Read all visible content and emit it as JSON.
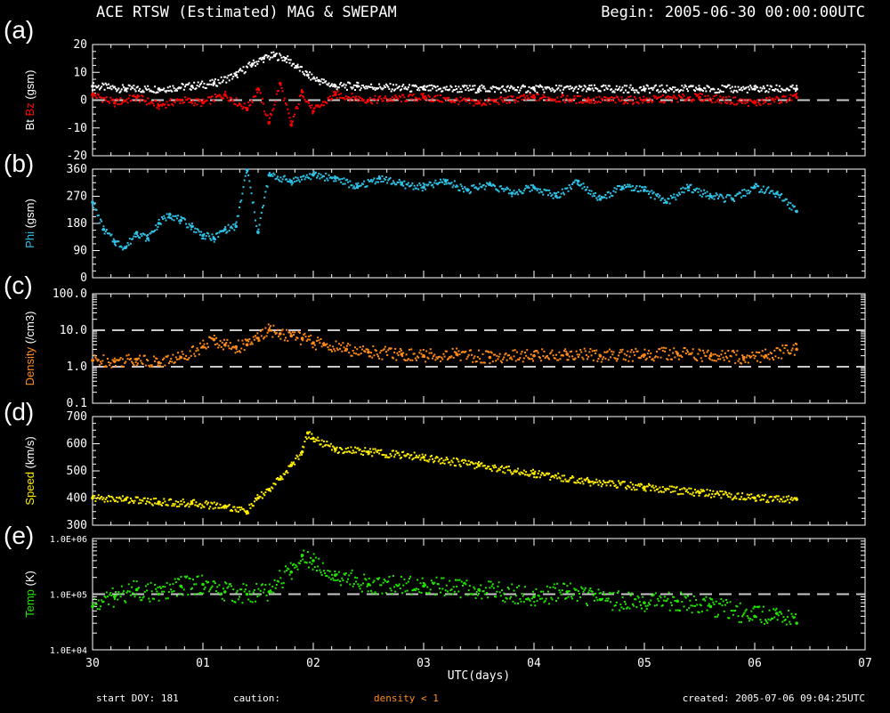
{
  "header": {
    "title": "ACE RTSW (Estimated) MAG & SWEPAM",
    "begin": "Begin: 2005-06-30 00:00:00UTC"
  },
  "footer": {
    "start_doy": "start DOY: 181",
    "caution": "caution:",
    "density_note": "density < 1",
    "created": "created: 2005-07-06 09:04:25UTC"
  },
  "colors": {
    "background": "#000000",
    "axes": "#ffffff",
    "bt": "#ffffff",
    "bz": "#ff0000",
    "phi": "#2ec4e8",
    "density": "#ff8c1a",
    "speed": "#ffee00",
    "temp": "#22e600",
    "reference": "#c8c8c8"
  },
  "chart_data": [
    {
      "panel": "(a)",
      "type": "line",
      "ylabel_parts": [
        "Bt",
        "Bz",
        "(gsm)"
      ],
      "ylim": [
        -20,
        20
      ],
      "yticks": [
        -20,
        -10,
        0,
        10,
        20
      ],
      "reference_lines": [
        0
      ],
      "series": [
        {
          "name": "Bt",
          "color_key": "bt",
          "x": [
            0.0,
            0.3,
            0.6,
            0.9,
            1.1,
            1.3,
            1.45,
            1.55,
            1.65,
            1.75,
            1.85,
            1.95,
            2.05,
            2.2,
            2.4,
            3.0,
            3.5,
            4.0,
            4.5,
            5.0,
            5.5,
            6.0,
            6.38
          ],
          "y": [
            5,
            4,
            4,
            5,
            6,
            9,
            13,
            15,
            16,
            15,
            12,
            9,
            7,
            5,
            5,
            4,
            4,
            4,
            4,
            4,
            4,
            4,
            4
          ]
        },
        {
          "name": "Bz",
          "color_key": "bz",
          "x": [
            0.0,
            0.2,
            0.4,
            0.6,
            0.8,
            1.0,
            1.2,
            1.4,
            1.5,
            1.6,
            1.7,
            1.8,
            1.9,
            2.0,
            2.2,
            2.5,
            3.0,
            3.5,
            4.0,
            4.5,
            5.0,
            5.5,
            6.0,
            6.38
          ],
          "y": [
            2,
            -1,
            1,
            -2,
            0,
            -1,
            2,
            -3,
            4,
            -8,
            6,
            -9,
            3,
            -4,
            2,
            0,
            1,
            -1,
            1,
            0,
            0,
            1,
            -1,
            1
          ]
        }
      ]
    },
    {
      "panel": "(b)",
      "type": "scatter",
      "ylabel_parts": [
        "Phi",
        "(gsm)"
      ],
      "ylim": [
        0,
        360
      ],
      "yticks": [
        0,
        90,
        180,
        270,
        360
      ],
      "series": [
        {
          "name": "Phi",
          "color_key": "phi",
          "x": [
            0.0,
            0.1,
            0.2,
            0.3,
            0.4,
            0.5,
            0.6,
            0.7,
            0.8,
            0.9,
            1.0,
            1.1,
            1.2,
            1.3,
            1.4,
            1.5,
            1.6,
            1.8,
            2.0,
            2.2,
            2.4,
            2.6,
            2.8,
            3.0,
            3.2,
            3.4,
            3.6,
            3.8,
            4.0,
            4.2,
            4.4,
            4.6,
            4.8,
            5.0,
            5.2,
            5.4,
            5.6,
            5.8,
            6.0,
            6.2,
            6.38
          ],
          "y": [
            250,
            160,
            120,
            100,
            150,
            130,
            180,
            210,
            190,
            170,
            140,
            130,
            160,
            170,
            360,
            150,
            340,
            320,
            340,
            330,
            300,
            330,
            310,
            300,
            320,
            290,
            310,
            280,
            300,
            270,
            320,
            260,
            300,
            290,
            250,
            300,
            270,
            260,
            300,
            280,
            220
          ]
        }
      ]
    },
    {
      "panel": "(c)",
      "type": "scatter",
      "ylabel_parts": [
        "Density",
        "(/cm3)"
      ],
      "yscale": "log",
      "ylim": [
        0.1,
        100
      ],
      "yticks": [
        0.1,
        1.0,
        10.0,
        100.0
      ],
      "yticklabels": [
        "0.1",
        "1.0",
        "10.0",
        "100.0"
      ],
      "reference_lines": [
        1,
        10
      ],
      "series": [
        {
          "name": "Density",
          "color_key": "density",
          "x": [
            0.0,
            0.2,
            0.4,
            0.6,
            0.8,
            1.0,
            1.1,
            1.2,
            1.3,
            1.4,
            1.5,
            1.6,
            1.7,
            1.8,
            1.9,
            2.0,
            2.1,
            2.3,
            2.5,
            2.8,
            3.0,
            3.3,
            3.6,
            4.0,
            4.3,
            4.6,
            5.0,
            5.3,
            5.6,
            5.9,
            6.1,
            6.38
          ],
          "y": [
            1.5,
            1.4,
            1.6,
            1.3,
            1.8,
            3.5,
            5.5,
            4.0,
            3.5,
            4.0,
            6.0,
            10.0,
            8.0,
            7.0,
            6.0,
            4.5,
            4.0,
            3.0,
            2.5,
            2.2,
            2.0,
            2.2,
            1.8,
            2.0,
            2.2,
            2.0,
            2.1,
            2.3,
            2.0,
            1.8,
            2.0,
            3.0
          ]
        }
      ]
    },
    {
      "panel": "(d)",
      "type": "line",
      "ylabel_parts": [
        "Speed",
        "(km/s)"
      ],
      "ylim": [
        300,
        700
      ],
      "yticks": [
        300,
        400,
        500,
        600,
        700
      ],
      "series": [
        {
          "name": "Speed",
          "color_key": "speed",
          "x": [
            0.0,
            0.3,
            0.6,
            0.9,
            1.2,
            1.4,
            1.5,
            1.6,
            1.7,
            1.8,
            1.9,
            1.95,
            2.0,
            2.2,
            2.5,
            3.0,
            3.5,
            4.0,
            4.5,
            5.0,
            5.5,
            6.0,
            6.38
          ],
          "y": [
            400,
            395,
            385,
            380,
            370,
            350,
            400,
            430,
            470,
            520,
            570,
            640,
            620,
            580,
            570,
            550,
            520,
            490,
            460,
            440,
            420,
            400,
            395
          ]
        }
      ]
    },
    {
      "panel": "(e)",
      "type": "scatter",
      "ylabel_parts": [
        "Temp",
        "(K)"
      ],
      "yscale": "log",
      "ylim": [
        10000,
        1000000
      ],
      "yticks": [
        10000,
        100000,
        1000000
      ],
      "yticklabels": [
        "1.0E+04",
        "1.0E+05",
        "1.0E+06"
      ],
      "reference_lines": [
        100000
      ],
      "series": [
        {
          "name": "Temp",
          "color_key": "temp",
          "x": [
            0.0,
            0.2,
            0.4,
            0.6,
            0.8,
            1.0,
            1.2,
            1.4,
            1.6,
            1.8,
            1.9,
            2.0,
            2.2,
            2.5,
            3.0,
            3.5,
            4.0,
            4.3,
            4.6,
            5.0,
            5.3,
            5.6,
            6.0,
            6.2,
            6.38
          ],
          "y": [
            60000,
            90000,
            120000,
            100000,
            140000,
            150000,
            110000,
            100000,
            110000,
            250000,
            500000,
            400000,
            220000,
            150000,
            140000,
            120000,
            90000,
            110000,
            80000,
            70000,
            75000,
            60000,
            40000,
            45000,
            30000
          ]
        }
      ]
    }
  ],
  "xaxis": {
    "label": "UTC(days)",
    "xlim": [
      0,
      7
    ],
    "ticks": [
      0,
      1,
      2,
      3,
      4,
      5,
      6,
      7
    ],
    "ticklabels": [
      "30",
      "01",
      "02",
      "03",
      "04",
      "05",
      "06",
      "07"
    ]
  }
}
